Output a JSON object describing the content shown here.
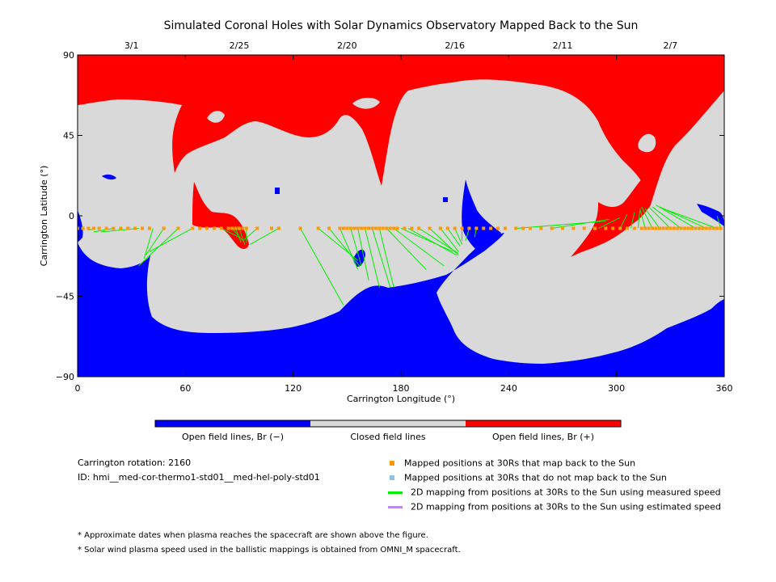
{
  "chart_data": {
    "type": "map",
    "title": "Simulated Coronal Holes with Solar Dynamics Observatory Mapped Back to the Sun",
    "xlabel": "Carrington Longitude (°)",
    "ylabel": "Carrington Latitude (°)",
    "xlim": [
      0,
      360
    ],
    "ylim": [
      -90,
      90
    ],
    "x_ticks": [
      "0",
      "60",
      "120",
      "180",
      "240",
      "300",
      "360"
    ],
    "y_ticks": [
      "90",
      "45",
      "0",
      "−45",
      "−90"
    ],
    "x_tick_values": [
      0,
      60,
      120,
      180,
      240,
      300,
      360
    ],
    "y_tick_values": [
      90,
      45,
      0,
      -45,
      -90
    ],
    "top_dates": [
      {
        "label": "3/1",
        "lon": 30
      },
      {
        "label": "2/25",
        "lon": 90
      },
      {
        "label": "2/20",
        "lon": 150
      },
      {
        "label": "2/16",
        "lon": 210
      },
      {
        "label": "2/11",
        "lon": 270
      },
      {
        "label": "2/7",
        "lon": 330
      }
    ],
    "colors": {
      "positive": "#ff0000",
      "negative": "#0000ff",
      "closed": "#d9d9d9",
      "mapped": "#ff9900",
      "unmapped": "#88c4ee",
      "measured": "#00ee00",
      "estimated": "#bb88ee"
    },
    "colorbar": [
      {
        "label": "Open field lines, Br (−)",
        "color": "#0000ff"
      },
      {
        "label": "Closed field lines",
        "color": "#d9d9d9"
      },
      {
        "label": "Open field lines, Br (+)",
        "color": "#ff0000"
      }
    ],
    "mapped_latitude": -7,
    "mapped_longitudes": [
      0,
      3,
      6,
      9,
      12,
      16,
      20,
      24,
      28,
      32,
      36,
      40,
      48,
      56,
      64,
      68,
      72,
      76,
      80,
      84,
      86,
      88,
      90,
      92,
      94,
      100,
      108,
      112,
      124,
      134,
      140,
      146,
      148,
      150,
      152,
      154,
      156,
      158,
      160,
      162,
      164,
      166,
      168,
      170,
      172,
      174,
      176,
      178,
      182,
      186,
      190,
      196,
      202,
      206,
      210,
      214,
      218,
      222,
      226,
      230,
      234,
      238,
      244,
      248,
      252,
      258,
      264,
      270,
      276,
      282,
      288,
      294,
      298,
      302,
      306,
      310,
      314,
      316,
      318,
      320,
      322,
      324,
      326,
      328,
      330,
      332,
      334,
      336,
      338,
      340,
      342,
      344,
      346,
      348,
      350,
      352,
      354,
      356,
      358
    ],
    "mappings": [
      {
        "from": [
          2,
          -7
        ],
        "to": [
          3,
          -6
        ]
      },
      {
        "from": [
          10,
          -7
        ],
        "to": [
          6,
          -8
        ]
      },
      {
        "from": [
          20,
          -7
        ],
        "to": [
          9,
          -9
        ]
      },
      {
        "from": [
          34,
          -7
        ],
        "to": [
          13,
          -9
        ]
      },
      {
        "from": [
          42,
          -7
        ],
        "to": [
          37,
          -24
        ]
      },
      {
        "from": [
          48,
          -7
        ],
        "to": [
          38,
          -22
        ]
      },
      {
        "from": [
          56,
          -7
        ],
        "to": [
          34,
          -28
        ]
      },
      {
        "from": [
          64,
          -7
        ],
        "to": [
          40,
          -20
        ]
      },
      {
        "from": [
          80,
          -7
        ],
        "to": [
          90,
          -12
        ]
      },
      {
        "from": [
          86,
          -7
        ],
        "to": [
          92,
          -14
        ]
      },
      {
        "from": [
          88,
          -7
        ],
        "to": [
          91,
          -15
        ]
      },
      {
        "from": [
          90,
          -7
        ],
        "to": [
          93,
          -16
        ]
      },
      {
        "from": [
          94,
          -7
        ],
        "to": [
          94,
          -15
        ]
      },
      {
        "from": [
          100,
          -7
        ],
        "to": [
          92,
          -14
        ]
      },
      {
        "from": [
          112,
          -7
        ],
        "to": [
          96,
          -16
        ]
      },
      {
        "from": [
          124,
          -7
        ],
        "to": [
          148,
          -50
        ]
      },
      {
        "from": [
          134,
          -7
        ],
        "to": [
          156,
          -25
        ]
      },
      {
        "from": [
          140,
          -7
        ],
        "to": [
          157,
          -28
        ]
      },
      {
        "from": [
          146,
          -7
        ],
        "to": [
          156,
          -30
        ]
      },
      {
        "from": [
          152,
          -7
        ],
        "to": [
          158,
          -28
        ]
      },
      {
        "from": [
          156,
          -7
        ],
        "to": [
          162,
          -36
        ]
      },
      {
        "from": [
          160,
          -7
        ],
        "to": [
          168,
          -40
        ]
      },
      {
        "from": [
          164,
          -7
        ],
        "to": [
          174,
          -40
        ]
      },
      {
        "from": [
          168,
          -7
        ],
        "to": [
          176,
          -40
        ]
      },
      {
        "from": [
          172,
          -7
        ],
        "to": [
          194,
          -30
        ]
      },
      {
        "from": [
          176,
          -7
        ],
        "to": [
          204,
          -28
        ]
      },
      {
        "from": [
          180,
          -7
        ],
        "to": [
          209,
          -20
        ]
      },
      {
        "from": [
          184,
          -7
        ],
        "to": [
          211,
          -22
        ]
      },
      {
        "from": [
          190,
          -7
        ],
        "to": [
          212,
          -21
        ]
      },
      {
        "from": [
          196,
          -7
        ],
        "to": [
          212,
          -22
        ]
      },
      {
        "from": [
          202,
          -7
        ],
        "to": [
          212,
          -20
        ]
      },
      {
        "from": [
          206,
          -7
        ],
        "to": [
          213,
          -17
        ]
      },
      {
        "from": [
          210,
          -7
        ],
        "to": [
          214,
          -16
        ]
      },
      {
        "from": [
          214,
          -7
        ],
        "to": [
          214,
          -14
        ]
      },
      {
        "from": [
          218,
          -7
        ],
        "to": [
          216,
          -14
        ]
      },
      {
        "from": [
          222,
          -7
        ],
        "to": [
          221,
          -12
        ]
      },
      {
        "from": [
          244,
          -7
        ],
        "to": [
          294,
          -3
        ]
      },
      {
        "from": [
          264,
          -7
        ],
        "to": [
          296,
          -2
        ]
      },
      {
        "from": [
          290,
          -7
        ],
        "to": [
          302,
          -1
        ]
      },
      {
        "from": [
          302,
          -7
        ],
        "to": [
          306,
          1
        ]
      },
      {
        "from": [
          308,
          -7
        ],
        "to": [
          310,
          2
        ]
      },
      {
        "from": [
          312,
          -7
        ],
        "to": [
          313,
          3
        ]
      },
      {
        "from": [
          316,
          -7
        ],
        "to": [
          313,
          4
        ]
      },
      {
        "from": [
          320,
          -7
        ],
        "to": [
          314,
          5
        ]
      },
      {
        "from": [
          324,
          -7
        ],
        "to": [
          316,
          4
        ]
      },
      {
        "from": [
          330,
          -7
        ],
        "to": [
          318,
          5
        ]
      },
      {
        "from": [
          336,
          -7
        ],
        "to": [
          320,
          5
        ]
      },
      {
        "from": [
          344,
          -7
        ],
        "to": [
          322,
          6
        ]
      },
      {
        "from": [
          350,
          -7
        ],
        "to": [
          324,
          5
        ]
      },
      {
        "from": [
          356,
          -7
        ],
        "to": [
          326,
          4
        ]
      },
      {
        "from": [
          358,
          -7
        ],
        "to": [
          356,
          0
        ]
      }
    ]
  },
  "info": {
    "rotation": "Carrington rotation: 2160",
    "id": "ID: hmi__med-cor-thermo1-std01__med-hel-poly-std01"
  },
  "key": {
    "mapped": "Mapped positions at 30Rs that map back to the Sun",
    "unmapped": "Mapped positions at 30Rs that do not map back to the Sun",
    "measured": "2D mapping from positions at 30Rs to the Sun using measured speed",
    "estimated": "2D mapping from positions at 30Rs to the Sun using estimated speed"
  },
  "notes": [
    "* Approximate dates when plasma reaches the spacecraft are shown above the figure.",
    "* Solar wind plasma speed used in the ballistic mappings is obtained from OMNI_M spacecraft."
  ]
}
